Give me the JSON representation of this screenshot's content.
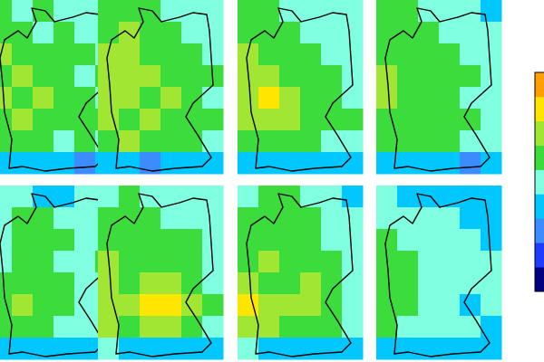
{
  "palette": [
    "#000080",
    "#1e3cff",
    "#3c8cff",
    "#00c8ff",
    "#80ffe0",
    "#3cdc3c",
    "#a0e632",
    "#ffe600",
    "#ffa000"
  ],
  "panels": [
    {
      "cells": [
        [
          5,
          4,
          5,
          4,
          4,
          4
        ],
        [
          5,
          5,
          4,
          5,
          4,
          4
        ],
        [
          6,
          5,
          5,
          5,
          5,
          4
        ],
        [
          5,
          6,
          5,
          5,
          4,
          5
        ],
        [
          6,
          5,
          6,
          5,
          5,
          4
        ],
        [
          5,
          6,
          5,
          5,
          5,
          5
        ],
        [
          5,
          5,
          5,
          4,
          5,
          4
        ],
        [
          3,
          3,
          3,
          3,
          2,
          3
        ]
      ]
    },
    {
      "cells": [
        [
          5,
          5,
          5,
          4,
          4,
          4
        ],
        [
          5,
          6,
          5,
          5,
          4,
          4
        ],
        [
          6,
          6,
          5,
          5,
          5,
          4
        ],
        [
          6,
          6,
          6,
          5,
          5,
          5
        ],
        [
          6,
          6,
          5,
          6,
          5,
          4
        ],
        [
          6,
          5,
          6,
          5,
          5,
          5
        ],
        [
          5,
          6,
          5,
          5,
          5,
          4
        ],
        [
          3,
          3,
          2,
          3,
          3,
          3
        ]
      ]
    },
    {
      "cells": [
        [
          5,
          5,
          4,
          4,
          4,
          4
        ],
        [
          5,
          5,
          5,
          4,
          4,
          4
        ],
        [
          6,
          5,
          5,
          5,
          4,
          4
        ],
        [
          6,
          6,
          5,
          5,
          5,
          4
        ],
        [
          6,
          7,
          6,
          5,
          5,
          4
        ],
        [
          6,
          6,
          6,
          5,
          5,
          5
        ],
        [
          5,
          5,
          5,
          5,
          4,
          4
        ],
        [
          3,
          3,
          3,
          3,
          3,
          3
        ]
      ]
    },
    {
      "cells": [
        [
          5,
          5,
          4,
          4,
          4,
          3
        ],
        [
          5,
          5,
          5,
          4,
          4,
          4
        ],
        [
          5,
          5,
          5,
          5,
          4,
          4
        ],
        [
          6,
          5,
          5,
          5,
          5,
          4
        ],
        [
          6,
          5,
          5,
          5,
          4,
          4
        ],
        [
          5,
          5,
          5,
          5,
          5,
          4
        ],
        [
          5,
          5,
          5,
          5,
          4,
          4
        ],
        [
          3,
          3,
          3,
          3,
          2,
          3
        ]
      ]
    },
    {
      "cells": [
        [
          4,
          4,
          3,
          3,
          4,
          4
        ],
        [
          4,
          5,
          5,
          4,
          4,
          4
        ],
        [
          4,
          5,
          5,
          5,
          4,
          4
        ],
        [
          4,
          5,
          5,
          4,
          4,
          5
        ],
        [
          5,
          5,
          5,
          5,
          4,
          4
        ],
        [
          5,
          6,
          5,
          5,
          4,
          4
        ],
        [
          5,
          5,
          5,
          4,
          4,
          4
        ],
        [
          3,
          3,
          3,
          3,
          3,
          3
        ]
      ]
    },
    {
      "cells": [
        [
          4,
          5,
          4,
          4,
          4,
          4
        ],
        [
          5,
          5,
          5,
          4,
          4,
          4
        ],
        [
          5,
          5,
          5,
          5,
          5,
          4
        ],
        [
          6,
          5,
          5,
          5,
          5,
          4
        ],
        [
          6,
          5,
          6,
          6,
          5,
          4
        ],
        [
          6,
          6,
          7,
          7,
          6,
          5
        ],
        [
          6,
          5,
          6,
          6,
          5,
          4
        ],
        [
          4,
          3,
          3,
          3,
          3,
          3
        ]
      ]
    },
    {
      "cells": [
        [
          4,
          5,
          5,
          4,
          4,
          3
        ],
        [
          5,
          5,
          5,
          5,
          4,
          4
        ],
        [
          5,
          5,
          5,
          5,
          4,
          4
        ],
        [
          5,
          6,
          5,
          5,
          5,
          4
        ],
        [
          6,
          5,
          5,
          6,
          5,
          4
        ],
        [
          7,
          6,
          6,
          6,
          5,
          4
        ],
        [
          6,
          6,
          5,
          5,
          5,
          4
        ],
        [
          4,
          3,
          3,
          3,
          3,
          3
        ]
      ]
    },
    {
      "cells": [
        [
          4,
          3,
          3,
          3,
          3,
          3
        ],
        [
          4,
          4,
          4,
          4,
          3,
          3
        ],
        [
          5,
          4,
          4,
          4,
          4,
          3
        ],
        [
          5,
          5,
          4,
          4,
          4,
          4
        ],
        [
          5,
          5,
          4,
          4,
          4,
          4
        ],
        [
          5,
          5,
          4,
          4,
          3,
          4
        ],
        [
          5,
          4,
          4,
          4,
          4,
          3
        ],
        [
          3,
          3,
          3,
          3,
          3,
          3
        ]
      ]
    }
  ]
}
